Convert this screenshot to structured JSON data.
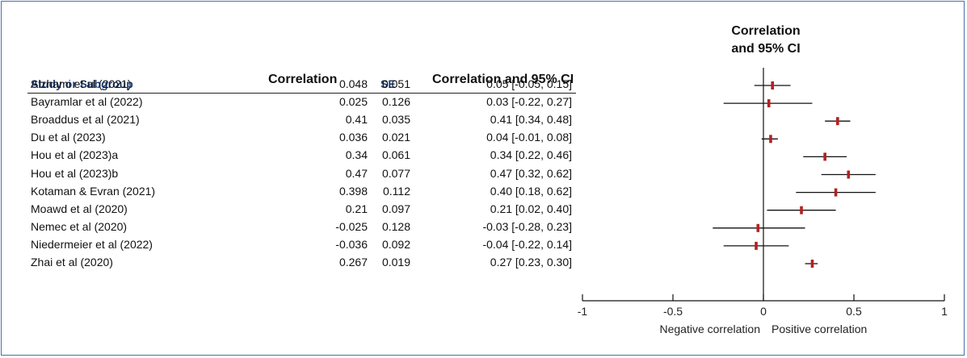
{
  "headers": {
    "study": "Study or Subgroup",
    "correlation": "Correlation",
    "se": "SE",
    "ci": "Correlation and 95% CI",
    "plot_line1": "Correlation",
    "plot_line2": "and 95% CI"
  },
  "rows": [
    {
      "study": "Alzhami et al (2021)",
      "correlation": "0.048",
      "se": "0.051",
      "ci": "0.05 [-0.05, 0.15]"
    },
    {
      "study": "Bayramlar et al (2022)",
      "correlation": "0.025",
      "se": "0.126",
      "ci": "0.03 [-0.22, 0.27]"
    },
    {
      "study": "Broaddus et al (2021)",
      "correlation": "0.41",
      "se": "0.035",
      "ci": "0.41 [0.34, 0.48]"
    },
    {
      "study": "Du et al (2023)",
      "correlation": "0.036",
      "se": "0.021",
      "ci": "0.04 [-0.01, 0.08]"
    },
    {
      "study": "Hou et al (2023)a",
      "correlation": "0.34",
      "se": "0.061",
      "ci": "0.34 [0.22, 0.46]"
    },
    {
      "study": "Hou et al (2023)b",
      "correlation": "0.47",
      "se": "0.077",
      "ci": "0.47 [0.32, 0.62]"
    },
    {
      "study": "Kotaman & Evran (2021)",
      "correlation": "0.398",
      "se": "0.112",
      "ci": "0.40 [0.18, 0.62]"
    },
    {
      "study": "Moawd et al (2020)",
      "correlation": "0.21",
      "se": "0.097",
      "ci": "0.21 [0.02, 0.40]"
    },
    {
      "study": "Nemec et al (2020)",
      "correlation": "-0.025",
      "se": "0.128",
      "ci": "-0.03 [-0.28, 0.23]"
    },
    {
      "study": "Niedermeier et al (2022)",
      "correlation": "-0.036",
      "se": "0.092",
      "ci": "-0.04 [-0.22, 0.14]"
    },
    {
      "study": "Zhai et al (2020)",
      "correlation": "0.267",
      "se": "0.019",
      "ci": "0.27 [0.23, 0.30]"
    }
  ],
  "chart_data": {
    "type": "forest",
    "title": "Correlation and 95% CI",
    "studies": [
      "Alzhami et al (2021)",
      "Bayramlar et al (2022)",
      "Broaddus et al (2021)",
      "Du et al (2023)",
      "Hou et al (2023)a",
      "Hou et al (2023)b",
      "Kotaman & Evran (2021)",
      "Moawd et al (2020)",
      "Nemec et al (2020)",
      "Niedermeier et al (2022)",
      "Zhai et al (2020)"
    ],
    "estimates": [
      0.05,
      0.03,
      0.41,
      0.04,
      0.34,
      0.47,
      0.4,
      0.21,
      -0.03,
      -0.04,
      0.27
    ],
    "ci_low": [
      -0.05,
      -0.22,
      0.34,
      -0.01,
      0.22,
      0.32,
      0.18,
      0.02,
      -0.28,
      -0.22,
      0.23
    ],
    "ci_high": [
      0.15,
      0.27,
      0.48,
      0.08,
      0.46,
      0.62,
      0.62,
      0.4,
      0.23,
      0.14,
      0.3
    ],
    "xlim": [
      -1,
      1
    ],
    "xticks": [
      "-1",
      "-0.5",
      "0",
      "0.5",
      "1"
    ],
    "xtick_values": [
      -1,
      -0.5,
      0,
      0.5,
      1
    ],
    "left_label": "Negative correlation",
    "right_label": "Positive correlation",
    "marker_color": "#b22222",
    "line_color": "#111111"
  }
}
